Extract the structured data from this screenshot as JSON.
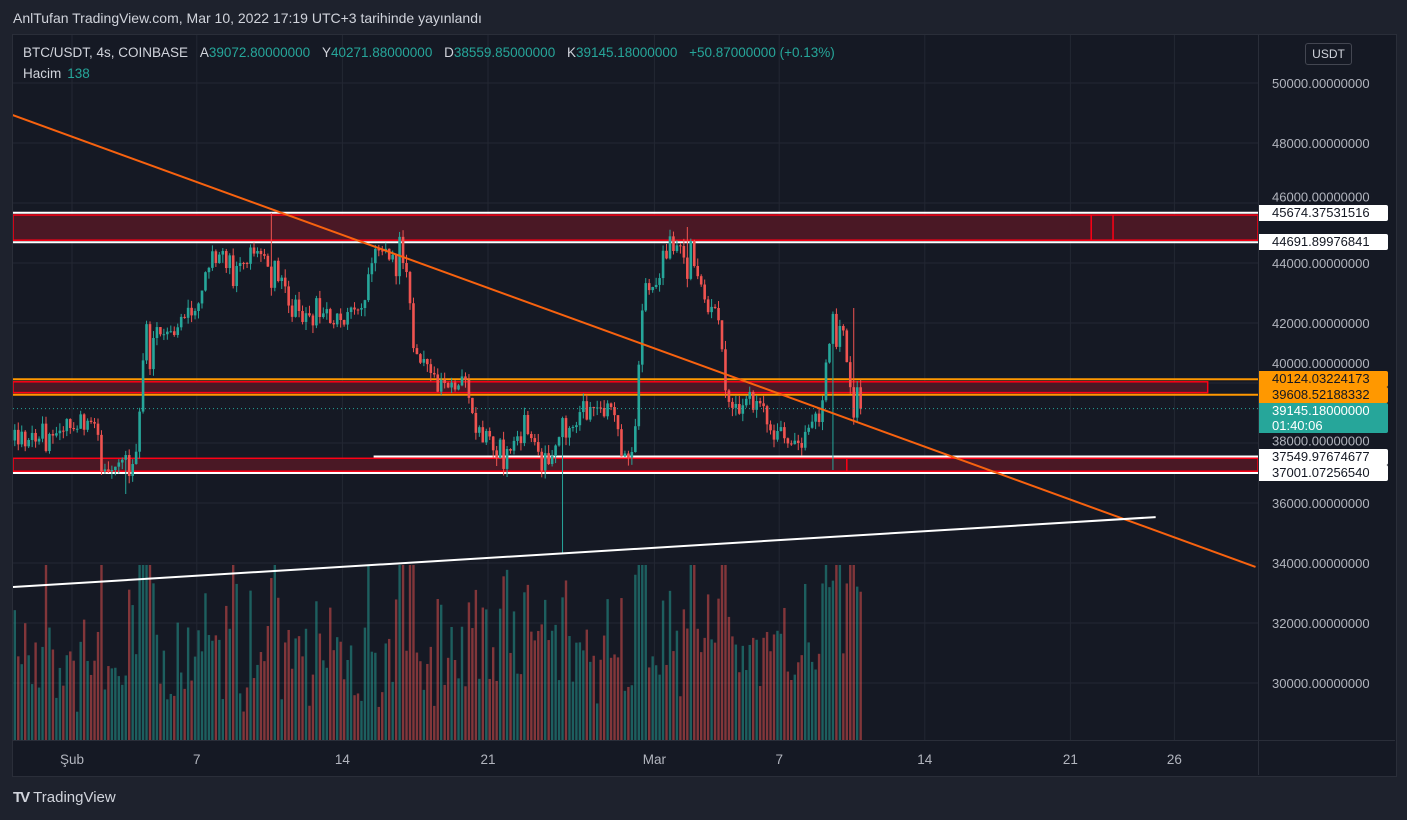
{
  "published": "AnlTufan TradingView.com, Mar 10, 2022 17:19 UTC+3 tarihinde yayınlandı",
  "legend": {
    "symbol": "BTC/USDT, 4s, COINBASE",
    "open_label": "A",
    "open": "39072.80000000",
    "high_label": "Y",
    "high": "40271.88000000",
    "low_label": "D",
    "low": "38559.85000000",
    "close_label": "K",
    "close": "39145.18000000",
    "change": "+50.87000000 (+0.13%)",
    "volume_label": "Hacim",
    "volume": "138"
  },
  "currency": "USDT",
  "brand": "TradingView",
  "price_labels": {
    "zone_top_high": "45674.37531516",
    "zone_top_low": "44691.89976841",
    "zone_mid_high": "40124.03224173",
    "zone_mid_low": "39608.52188332",
    "last_price": "39145.18000000",
    "countdown": "01:40:06",
    "zone_bot_high": "37549.97674677",
    "zone_bot_low": "37001.07256540"
  },
  "colors": {
    "up": "#26a69a",
    "down": "#ef5350",
    "trend_orange": "#f7620f",
    "zone_fill": "#4a1825",
    "zone_border": "#ff0015",
    "orange": "#ff9800"
  },
  "chart_data": {
    "type": "candlestick",
    "title": "BTC/USDT, 4s, COINBASE",
    "ylim": [
      28000,
      51000
    ],
    "y_ticks": [
      30000,
      32000,
      34000,
      36000,
      38000,
      40000,
      42000,
      44000,
      46000,
      48000,
      50000
    ],
    "y_tick_labels": [
      "30000.00000000",
      "32000.00000000",
      "34000.00000000",
      "36000.00000000",
      "38000.00000000",
      "40000.00000000",
      "42000.00000000",
      "44000.00000000",
      "46000.00000000",
      "48000.00000000",
      "50000.00000000"
    ],
    "x_ticks": [
      {
        "label": "Şub",
        "day": 0
      },
      {
        "label": "7",
        "day": 6
      },
      {
        "label": "14",
        "day": 13
      },
      {
        "label": "21",
        "day": 20
      },
      {
        "label": "Mar",
        "day": 28
      },
      {
        "label": "7",
        "day": 34
      },
      {
        "label": "14",
        "day": 41
      },
      {
        "label": "21",
        "day": 48
      },
      {
        "label": "26",
        "day": 53
      }
    ],
    "first_day": -3,
    "daily_close": [
      38100,
      38300,
      38500,
      38700,
      37100,
      37300,
      41500,
      41600,
      42400,
      44000,
      43900,
      44400,
      43400,
      42400,
      42200,
      42100,
      42500,
      44400,
      44000,
      40800,
      40000,
      40100,
      38400,
      37800,
      38300,
      37300,
      38500,
      39200,
      39200,
      37700,
      43200,
      44400,
      43900,
      42500,
      39300,
      39400,
      38400,
      38000,
      38700,
      41900,
      39145.18
    ],
    "extremes": [
      {
        "day": 9,
        "high": 45670
      },
      {
        "day": 23,
        "low": 34330
      },
      {
        "day": 29,
        "high": 45200
      },
      {
        "day": 2,
        "low": 36300
      },
      {
        "day": 37,
        "high": 42500
      },
      {
        "day": 36,
        "low": 37100
      }
    ],
    "last_price": 39145.18,
    "drawings": {
      "trend_down": {
        "from": {
          "day": -2.85,
          "price": 48930
        },
        "to": {
          "day": 56.9,
          "price": 33870
        }
      },
      "trend_up": {
        "from": {
          "day": -2.85,
          "price": 33200
        },
        "to": {
          "day": 52.1,
          "price": 35530
        }
      },
      "zone_top": {
        "high": 45674.37,
        "low": 44691.9,
        "box_high": 45600,
        "box_low": 44760,
        "marks": [
          49.0,
          50.05
        ]
      },
      "zone_mid": {
        "high": 40124.03,
        "low": 39608.52,
        "box_high": 40040,
        "box_low": 39680,
        "box_end_day": 54.6
      },
      "zone_bot": {
        "high": 37549.98,
        "low": 37001.07,
        "box_high": 37490,
        "box_low": 37060,
        "line_start_day": 14.5,
        "marks": [
          37.25
        ]
      }
    }
  }
}
